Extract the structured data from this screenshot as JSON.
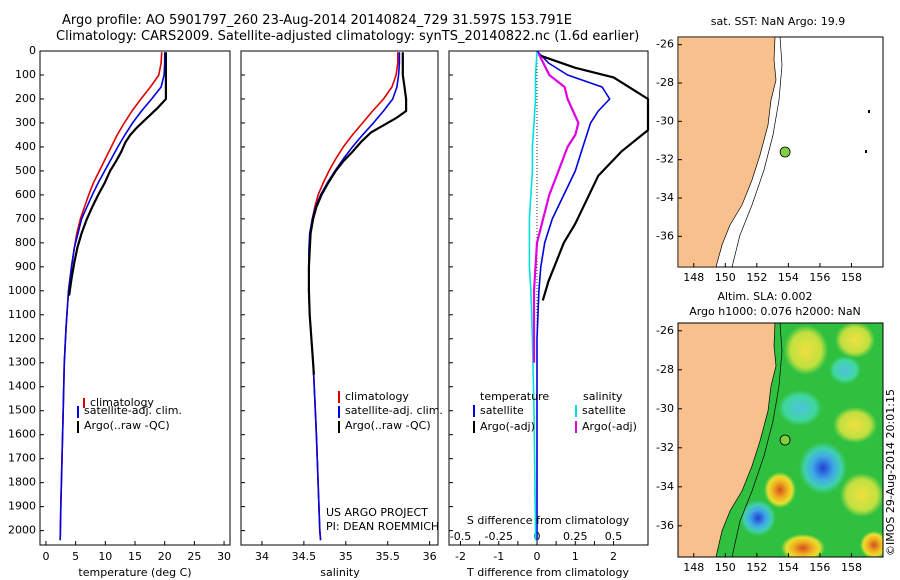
{
  "header": {
    "title_line1": "Argo profile: AO 5901797_260 23-Aug-2014 20140824_729 31.597S 153.791E",
    "title_line2": "Climatology: CARS2009. Satellite-adjusted climatology: synTS_20140822.nc (1.6d earlier)"
  },
  "credits": {
    "project": "US ARGO PROJECT",
    "pi": "PI: DEAN ROEMMICH",
    "imos_stamp": "©IMOS 29-Aug-2014 20:01:15"
  },
  "colors": {
    "climatology": "#e00000",
    "satellite": "#0000e0",
    "argo": "#000000",
    "sal_satellite": "#00e0e0",
    "sal_argo": "#e000e0",
    "land": "#f7c08c"
  },
  "map_sst": {
    "title": "sat. SST: NaN Argo: 19.9",
    "xticks": [
      "148",
      "150",
      "152",
      "154",
      "156",
      "158"
    ],
    "yticks": [
      "-26",
      "-28",
      "-30",
      "-32",
      "-34",
      "-36"
    ],
    "argo_marker": {
      "lon": 153.79,
      "lat": -31.6
    }
  },
  "map_sla": {
    "title_line1": "Altim. SLA: 0.002",
    "title_line2": "Argo h1000: 0.076 h2000: NaN",
    "xticks": [
      "148",
      "150",
      "152",
      "154",
      "156",
      "158"
    ],
    "yticks": [
      "-26",
      "-28",
      "-30",
      "-32",
      "-34",
      "-36"
    ],
    "argo_marker": {
      "lon": 153.79,
      "lat": -31.6
    }
  },
  "chart_data": [
    {
      "type": "line",
      "xlabel": "temperature (deg C)",
      "ylabel": "",
      "xlim": [
        -1,
        31
      ],
      "ylim": [
        2060,
        0
      ],
      "xticks": [
        0,
        5,
        10,
        15,
        20,
        25,
        30
      ],
      "yticks": [
        0,
        100,
        200,
        300,
        400,
        500,
        600,
        700,
        800,
        900,
        1000,
        1100,
        1200,
        1300,
        1400,
        1500,
        1600,
        1700,
        1800,
        1900,
        2000
      ],
      "legend": [
        "climatology",
        "satellite-adj. clim.",
        "Argo(..raw -QC)"
      ],
      "legend_position": "lower-center",
      "series": [
        {
          "name": "climatology",
          "points": [
            [
              19.5,
              5
            ],
            [
              19.4,
              50
            ],
            [
              19.0,
              100
            ],
            [
              17.6,
              150
            ],
            [
              16.0,
              200
            ],
            [
              14.5,
              250
            ],
            [
              13.2,
              300
            ],
            [
              12.0,
              350
            ],
            [
              11.0,
              400
            ],
            [
              10.0,
              450
            ],
            [
              9.0,
              500
            ],
            [
              8.0,
              550
            ],
            [
              7.2,
              600
            ],
            [
              6.5,
              650
            ],
            [
              5.8,
              700
            ],
            [
              5.2,
              760
            ],
            [
              4.8,
              820
            ],
            [
              4.3,
              900
            ],
            [
              3.8,
              1000
            ],
            [
              3.4,
              1150
            ],
            [
              3.1,
              1300
            ],
            [
              2.9,
              1500
            ],
            [
              2.7,
              1700
            ],
            [
              2.5,
              1900
            ],
            [
              2.4,
              2040
            ]
          ]
        },
        {
          "name": "satellite-adj. clim.",
          "points": [
            [
              20.0,
              5
            ],
            [
              20.0,
              50
            ],
            [
              19.9,
              100
            ],
            [
              19.4,
              150
            ],
            [
              17.8,
              200
            ],
            [
              16.1,
              250
            ],
            [
              14.6,
              300
            ],
            [
              13.3,
              350
            ],
            [
              12.1,
              400
            ],
            [
              11.0,
              450
            ],
            [
              9.9,
              500
            ],
            [
              8.8,
              550
            ],
            [
              7.8,
              600
            ],
            [
              6.9,
              650
            ],
            [
              6.0,
              700
            ],
            [
              5.4,
              760
            ],
            [
              4.8,
              820
            ],
            [
              4.3,
              900
            ],
            [
              3.8,
              1000
            ],
            [
              3.4,
              1150
            ],
            [
              3.1,
              1300
            ],
            [
              2.9,
              1500
            ],
            [
              2.7,
              1700
            ],
            [
              2.5,
              1900
            ],
            [
              2.4,
              2040
            ]
          ]
        },
        {
          "name": "Argo(..raw -QC)",
          "points": [
            [
              20.2,
              5
            ],
            [
              20.2,
              50
            ],
            [
              20.2,
              100
            ],
            [
              20.2,
              150
            ],
            [
              20.2,
              200
            ],
            [
              18.7,
              240
            ],
            [
              17.0,
              280
            ],
            [
              15.3,
              320
            ],
            [
              14.2,
              350
            ],
            [
              13.4,
              380
            ],
            [
              12.7,
              420
            ],
            [
              11.8,
              460
            ],
            [
              10.8,
              500
            ],
            [
              9.9,
              550
            ],
            [
              8.8,
              600
            ],
            [
              7.8,
              650
            ],
            [
              6.9,
              700
            ],
            [
              6.0,
              760
            ],
            [
              5.3,
              820
            ],
            [
              4.8,
              880
            ],
            [
              4.3,
              950
            ],
            [
              3.9,
              1020
            ]
          ]
        }
      ]
    },
    {
      "type": "line",
      "xlabel": "salinity",
      "ylabel": "",
      "xlim": [
        33.75,
        36.1
      ],
      "ylim": [
        2060,
        0
      ],
      "xticks": [
        34,
        34.5,
        35,
        35.5,
        36
      ],
      "legend": [
        "climatology",
        "satellite-adj. clim.",
        "Argo(..raw -QC)"
      ],
      "legend_position": "lower-center",
      "series": [
        {
          "name": "climatology",
          "points": [
            [
              35.62,
              5
            ],
            [
              35.62,
              50
            ],
            [
              35.6,
              100
            ],
            [
              35.55,
              150
            ],
            [
              35.45,
              200
            ],
            [
              35.32,
              250
            ],
            [
              35.2,
              300
            ],
            [
              35.08,
              350
            ],
            [
              34.97,
              400
            ],
            [
              34.88,
              450
            ],
            [
              34.8,
              500
            ],
            [
              34.73,
              550
            ],
            [
              34.67,
              600
            ],
            [
              34.63,
              650
            ],
            [
              34.6,
              700
            ],
            [
              34.58,
              760
            ],
            [
              34.57,
              830
            ],
            [
              34.56,
              900
            ],
            [
              34.56,
              1000
            ],
            [
              34.57,
              1100
            ],
            [
              34.59,
              1200
            ],
            [
              34.61,
              1300
            ],
            [
              34.63,
              1450
            ],
            [
              34.65,
              1600
            ],
            [
              34.67,
              1800
            ],
            [
              34.69,
              2000
            ],
            [
              34.7,
              2040
            ]
          ]
        },
        {
          "name": "satellite-adj. clim.",
          "points": [
            [
              35.64,
              5
            ],
            [
              35.64,
              50
            ],
            [
              35.63,
              100
            ],
            [
              35.61,
              150
            ],
            [
              35.56,
              200
            ],
            [
              35.45,
              250
            ],
            [
              35.33,
              300
            ],
            [
              35.2,
              350
            ],
            [
              35.08,
              400
            ],
            [
              34.97,
              450
            ],
            [
              34.87,
              500
            ],
            [
              34.78,
              550
            ],
            [
              34.7,
              600
            ],
            [
              34.64,
              650
            ],
            [
              34.6,
              700
            ],
            [
              34.57,
              760
            ],
            [
              34.56,
              830
            ],
            [
              34.56,
              900
            ],
            [
              34.56,
              1000
            ],
            [
              34.57,
              1100
            ],
            [
              34.59,
              1200
            ],
            [
              34.61,
              1300
            ],
            [
              34.63,
              1450
            ],
            [
              34.65,
              1600
            ],
            [
              34.67,
              1800
            ],
            [
              34.69,
              2000
            ],
            [
              34.7,
              2040
            ]
          ]
        },
        {
          "name": "Argo(..raw -QC)",
          "points": [
            [
              35.68,
              5
            ],
            [
              35.68,
              50
            ],
            [
              35.68,
              100
            ],
            [
              35.7,
              150
            ],
            [
              35.72,
              200
            ],
            [
              35.72,
              250
            ],
            [
              35.6,
              280
            ],
            [
              35.45,
              310
            ],
            [
              35.3,
              340
            ],
            [
              35.18,
              380
            ],
            [
              35.08,
              420
            ],
            [
              34.97,
              460
            ],
            [
              34.88,
              500
            ],
            [
              34.79,
              550
            ],
            [
              34.71,
              600
            ],
            [
              34.65,
              650
            ],
            [
              34.61,
              700
            ],
            [
              34.58,
              760
            ],
            [
              34.57,
              830
            ],
            [
              34.56,
              900
            ],
            [
              34.56,
              1000
            ],
            [
              34.57,
              1100
            ],
            [
              34.59,
              1200
            ],
            [
              34.61,
              1300
            ],
            [
              34.62,
              1350
            ]
          ]
        }
      ]
    },
    {
      "type": "line",
      "xlabel": "T difference from climatology",
      "x2label": "S difference from climatology",
      "xlim": [
        -2.3,
        2.9
      ],
      "x2lim": [
        -0.575,
        0.725
      ],
      "ylim": [
        2060,
        0
      ],
      "xticks": [
        -2,
        -1.5,
        -1,
        -0.5,
        0,
        0.5,
        1,
        1.5,
        2
      ],
      "xtick_labels": [
        "-2",
        "",
        "-1",
        "",
        "0",
        "",
        "1",
        "",
        "2"
      ],
      "x2ticks": [
        -0.5,
        -0.25,
        0,
        0.25,
        0.5
      ],
      "x2tick_labels": [
        "-0.5",
        "-0.25",
        "0",
        "0.25",
        "0.5"
      ],
      "legend_titles": [
        "temperature",
        "salinity"
      ],
      "legend": [
        "satellite",
        "Argo(-adj)",
        "satellite",
        "Argo(-adj)"
      ],
      "legend_position": "lower-center",
      "series": [
        {
          "name": "satellite",
          "group": "temperature",
          "points": [
            [
              0.0,
              0
            ],
            [
              0.3,
              50
            ],
            [
              0.8,
              100
            ],
            [
              1.7,
              150
            ],
            [
              1.9,
              200
            ],
            [
              1.6,
              250
            ],
            [
              1.4,
              300
            ],
            [
              1.2,
              400
            ],
            [
              1.0,
              500
            ],
            [
              0.7,
              600
            ],
            [
              0.4,
              700
            ],
            [
              0.2,
              800
            ],
            [
              0.1,
              900
            ],
            [
              0.05,
              1000
            ],
            [
              0.0,
              1200
            ],
            [
              0.0,
              2040
            ]
          ]
        },
        {
          "name": "Argo(-adj)",
          "group": "temperature",
          "points": [
            [
              0.1,
              20
            ],
            [
              1.0,
              70
            ],
            [
              2.0,
              110
            ],
            [
              2.9,
              200
            ],
            [
              2.9,
              330
            ],
            [
              2.2,
              420
            ],
            [
              1.6,
              520
            ],
            [
              1.3,
              620
            ],
            [
              1.0,
              720
            ],
            [
              0.7,
              800
            ],
            [
              0.5,
              880
            ],
            [
              0.3,
              960
            ],
            [
              0.15,
              1040
            ]
          ]
        },
        {
          "name": "satellite",
          "group": "salinity",
          "points": [
            [
              0.0,
              5
            ],
            [
              -0.01,
              100
            ],
            [
              -0.01,
              200
            ],
            [
              -0.02,
              300
            ],
            [
              -0.03,
              400
            ],
            [
              -0.03,
              500
            ],
            [
              -0.04,
              600
            ],
            [
              -0.05,
              700
            ],
            [
              -0.05,
              800
            ],
            [
              -0.05,
              900
            ],
            [
              -0.04,
              1000
            ],
            [
              -0.03,
              1200
            ],
            [
              -0.02,
              1500
            ],
            [
              -0.01,
              2000
            ],
            [
              -0.01,
              2040
            ]
          ]
        },
        {
          "name": "Argo(-adj)",
          "group": "salinity",
          "points": [
            [
              0.01,
              10
            ],
            [
              0.08,
              100
            ],
            [
              0.18,
              150
            ],
            [
              0.2,
              200
            ],
            [
              0.27,
              300
            ],
            [
              0.25,
              350
            ],
            [
              0.2,
              400
            ],
            [
              0.14,
              500
            ],
            [
              0.08,
              600
            ],
            [
              0.04,
              700
            ],
            [
              0.0,
              800
            ],
            [
              -0.01,
              900
            ],
            [
              -0.02,
              1000
            ],
            [
              -0.02,
              1150
            ],
            [
              -0.02,
              1300
            ]
          ]
        }
      ]
    }
  ]
}
